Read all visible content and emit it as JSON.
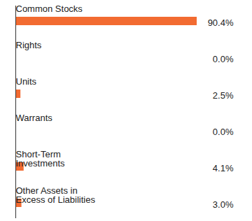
{
  "chart_data": {
    "type": "bar",
    "orientation": "horizontal",
    "categories": [
      "Common Stocks",
      "Rights",
      "Units",
      "Warrants",
      "Short-Term Investments",
      "Other Assets in Excess of Liabilities"
    ],
    "values": [
      90.4,
      0.0,
      2.5,
      0.0,
      4.1,
      3.0
    ],
    "value_labels": [
      "90.4%",
      "0.0%",
      "2.5%",
      "0.0%",
      "4.1%",
      "3.0%"
    ],
    "color": "#f26b31",
    "data_labels": true,
    "tick_labels": false,
    "grid": false
  }
}
